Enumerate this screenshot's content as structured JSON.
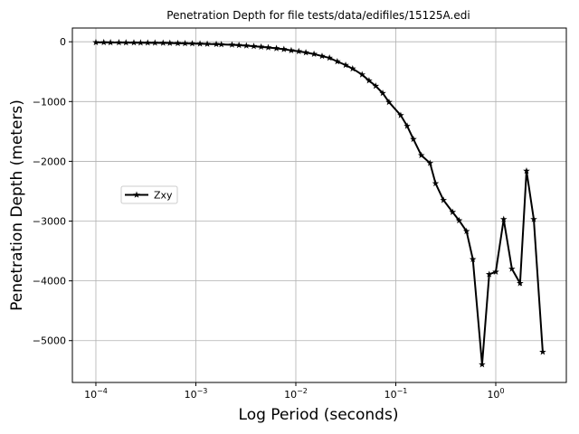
{
  "chart_data": {
    "type": "line",
    "title": "Penetration Depth for file tests/data/edifiles/15125A.edi",
    "x_label": "Log Period (seconds)",
    "y_label": "Penetration Depth (meters)",
    "x_scale": "log",
    "grid": true,
    "legend": "center left",
    "x": [
      0.0001,
      0.00012,
      0.00014,
      0.00017,
      0.0002,
      0.00024,
      0.00028,
      0.00033,
      0.00039,
      0.00047,
      0.00055,
      0.00066,
      0.00078,
      0.00092,
      0.0011,
      0.0013,
      0.0016,
      0.0018,
      0.0023,
      0.0027,
      0.0032,
      0.0038,
      0.0045,
      0.0053,
      0.0064,
      0.0076,
      0.009,
      0.0107,
      0.0126,
      0.0152,
      0.0183,
      0.0217,
      0.026,
      0.0315,
      0.037,
      0.046,
      0.054,
      0.063,
      0.074,
      0.0855,
      0.112,
      0.13,
      0.15,
      0.18,
      0.22,
      0.25,
      0.3,
      0.37,
      0.43,
      0.51,
      0.59,
      0.73,
      0.86,
      1.0,
      1.2,
      1.45,
      1.75,
      2.03,
      2.4,
      2.95
    ],
    "series": [
      {
        "name": "Zxy",
        "color": "#000000",
        "values": [
          -10,
          -11,
          -12,
          -13,
          -14,
          -15,
          -16,
          -17,
          -18,
          -20,
          -22,
          -25,
          -27,
          -30,
          -33,
          -37,
          -40,
          -45,
          -50,
          -57,
          -65,
          -75,
          -85,
          -95,
          -110,
          -125,
          -145,
          -160,
          -180,
          -205,
          -240,
          -270,
          -330,
          -390,
          -450,
          -550,
          -650,
          -740,
          -860,
          -1010,
          -1230,
          -1410,
          -1630,
          -1900,
          -2030,
          -2370,
          -2650,
          -2850,
          -2990,
          -3170,
          -3640,
          -5400,
          -3890,
          -3850,
          -2970,
          -3800,
          -4040,
          -2160,
          -2970,
          -5190
        ]
      }
    ],
    "xlim": [
      5.82e-05,
      5.08
    ],
    "ylim": [
      -5700,
      230
    ],
    "xticks": [
      {
        "value": 0.0001,
        "label": "10",
        "exponent": "−4"
      },
      {
        "value": 0.001,
        "label": "10",
        "exponent": "−3"
      },
      {
        "value": 0.01,
        "label": "10",
        "exponent": "−2"
      },
      {
        "value": 0.1,
        "label": "10",
        "exponent": "−1"
      },
      {
        "value": 1,
        "label": "10",
        "exponent": "0"
      }
    ],
    "yticks": [
      0,
      {
        "value": -1000,
        "label": "−1000"
      },
      {
        "value": -2000,
        "label": "−2000"
      },
      {
        "value": -3000,
        "label": "−3000"
      },
      {
        "value": -4000,
        "label": "−4000"
      },
      {
        "value": -5000,
        "label": "−5000"
      }
    ]
  }
}
